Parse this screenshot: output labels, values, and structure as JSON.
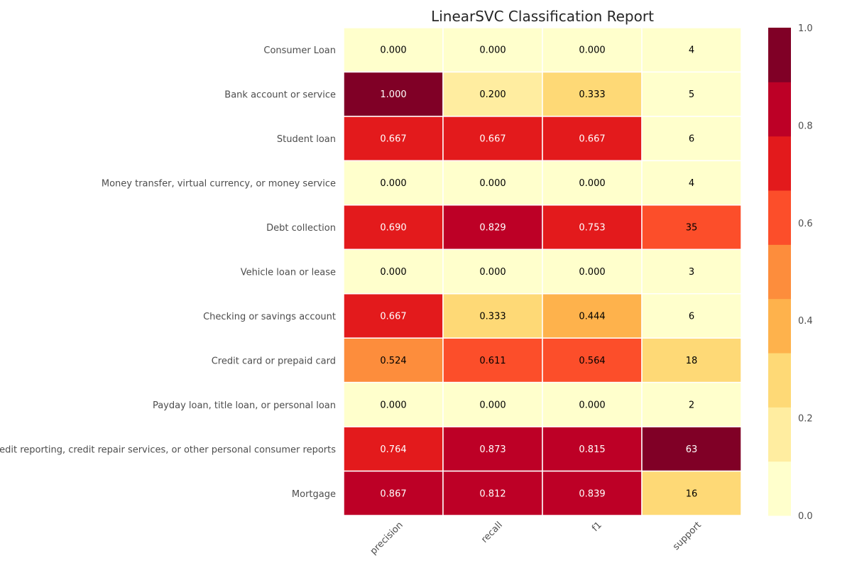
{
  "chart_data": {
    "type": "heatmap",
    "title": "LinearSVC Classification Report",
    "columns": [
      "precision",
      "recall",
      "f1",
      "support"
    ],
    "rows": [
      {
        "label": "Consumer Loan",
        "values": [
          0.0,
          0.0,
          0.0
        ],
        "support": 4,
        "value_labels": [
          "0.000",
          "0.000",
          "0.000",
          "4"
        ]
      },
      {
        "label": "Bank account or service",
        "values": [
          1.0,
          0.2,
          0.333
        ],
        "support": 5,
        "value_labels": [
          "1.000",
          "0.200",
          "0.333",
          "5"
        ]
      },
      {
        "label": "Student loan",
        "values": [
          0.667,
          0.667,
          0.667
        ],
        "support": 6,
        "value_labels": [
          "0.667",
          "0.667",
          "0.667",
          "6"
        ]
      },
      {
        "label": "Money transfer, virtual currency, or money service",
        "values": [
          0.0,
          0.0,
          0.0
        ],
        "support": 4,
        "value_labels": [
          "0.000",
          "0.000",
          "0.000",
          "4"
        ]
      },
      {
        "label": "Debt collection",
        "values": [
          0.69,
          0.829,
          0.753
        ],
        "support": 35,
        "value_labels": [
          "0.690",
          "0.829",
          "0.753",
          "35"
        ]
      },
      {
        "label": "Vehicle loan or lease",
        "values": [
          0.0,
          0.0,
          0.0
        ],
        "support": 3,
        "value_labels": [
          "0.000",
          "0.000",
          "0.000",
          "3"
        ]
      },
      {
        "label": "Checking or savings account",
        "values": [
          0.667,
          0.333,
          0.444
        ],
        "support": 6,
        "value_labels": [
          "0.667",
          "0.333",
          "0.444",
          "6"
        ]
      },
      {
        "label": "Credit card or prepaid card",
        "values": [
          0.524,
          0.611,
          0.564
        ],
        "support": 18,
        "value_labels": [
          "0.524",
          "0.611",
          "0.564",
          "18"
        ]
      },
      {
        "label": "Payday loan, title loan, or personal loan",
        "values": [
          0.0,
          0.0,
          0.0
        ],
        "support": 2,
        "value_labels": [
          "0.000",
          "0.000",
          "0.000",
          "2"
        ]
      },
      {
        "label": "Credit reporting, credit repair services, or other personal consumer reports",
        "values": [
          0.764,
          0.873,
          0.815
        ],
        "support": 63,
        "value_labels": [
          "0.764",
          "0.873",
          "0.815",
          "63"
        ]
      },
      {
        "label": "Mortgage",
        "values": [
          0.867,
          0.812,
          0.839
        ],
        "support": 16,
        "value_labels": [
          "0.867",
          "0.812",
          "0.839",
          "16"
        ]
      }
    ],
    "support_max": 63,
    "colorbar": {
      "range": [
        0.0,
        1.0
      ],
      "ticks": [
        0.0,
        0.2,
        0.4,
        0.6,
        0.8,
        1.0
      ],
      "tick_labels": [
        "0.0",
        "0.2",
        "0.4",
        "0.6",
        "0.8",
        "1.0"
      ],
      "bins": 9,
      "colors": [
        "#ffffcc",
        "#ffeda0",
        "#fed976",
        "#feb24c",
        "#fd8d3c",
        "#fc4e2a",
        "#e31a1c",
        "#bd0026",
        "#800026"
      ]
    },
    "grid": false,
    "legend": "right"
  }
}
